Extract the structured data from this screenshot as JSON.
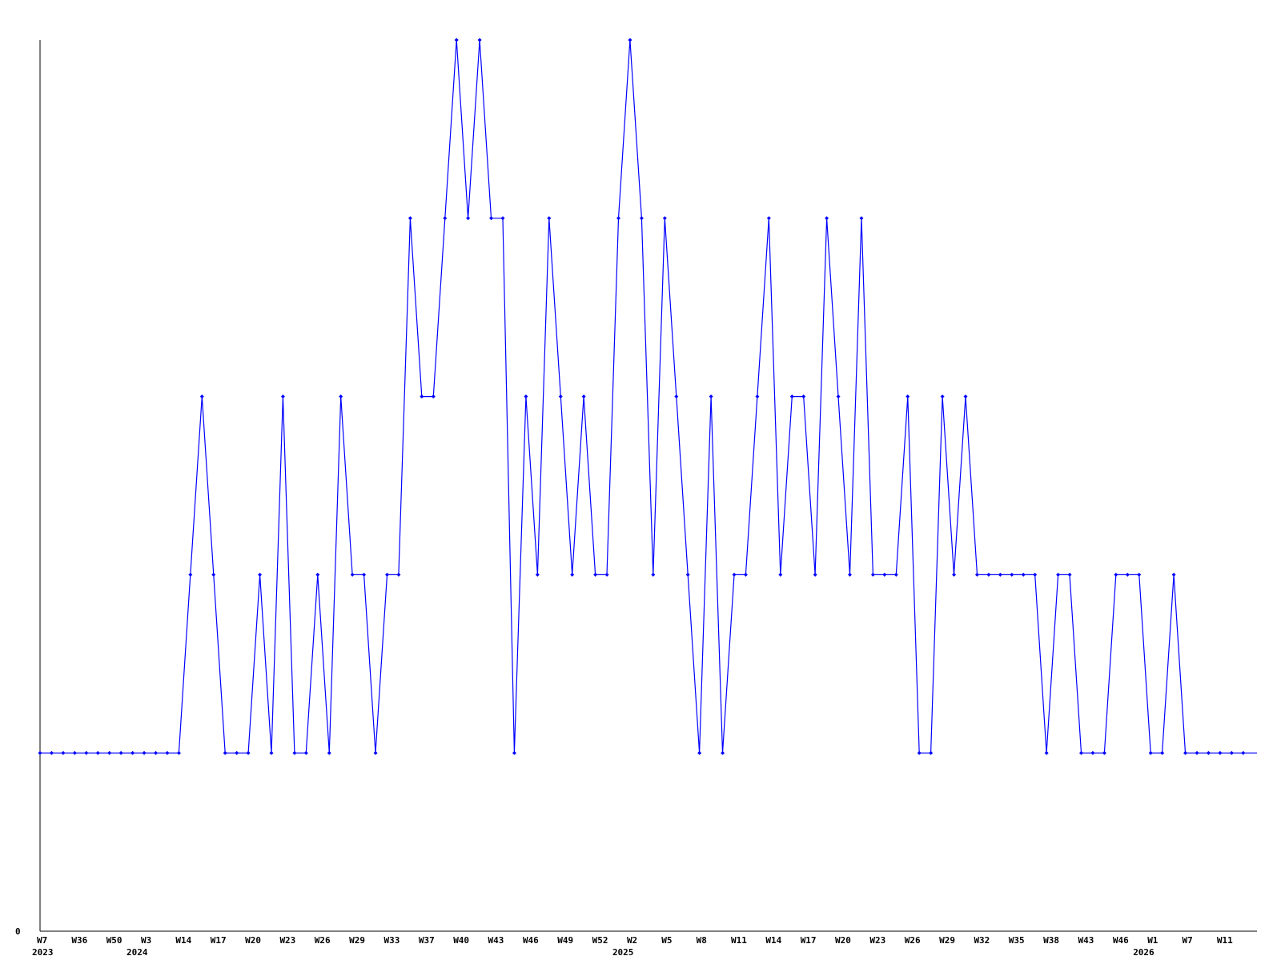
{
  "chart_data": {
    "type": "line",
    "title": "",
    "xlabel": "",
    "ylabel": "",
    "ylim": [
      0,
      5
    ],
    "grid": false,
    "legend": "none",
    "line_color": "#0000ff",
    "y_tick_labels": [
      "0"
    ],
    "x_tick_labels": [
      {
        "index": 0,
        "label": "W7",
        "year": "2023"
      },
      {
        "index": 3,
        "label": "W36"
      },
      {
        "index": 6,
        "label": "W50"
      },
      {
        "index": 9,
        "label": "W3",
        "year": "2024"
      },
      {
        "index": 12,
        "label": "W14"
      },
      {
        "index": 15,
        "label": "W17"
      },
      {
        "index": 18,
        "label": "W20"
      },
      {
        "index": 21,
        "label": "W23"
      },
      {
        "index": 24,
        "label": "W26"
      },
      {
        "index": 27,
        "label": "W29"
      },
      {
        "index": 30,
        "label": "W33"
      },
      {
        "index": 33,
        "label": "W37"
      },
      {
        "index": 36,
        "label": "W40"
      },
      {
        "index": 39,
        "label": "W43"
      },
      {
        "index": 42,
        "label": "W46"
      },
      {
        "index": 45,
        "label": "W49"
      },
      {
        "index": 48,
        "label": "W52"
      },
      {
        "index": 51,
        "label": "W2",
        "year": "2025"
      },
      {
        "index": 54,
        "label": "W5"
      },
      {
        "index": 57,
        "label": "W8"
      },
      {
        "index": 60,
        "label": "W11"
      },
      {
        "index": 63,
        "label": "W14"
      },
      {
        "index": 66,
        "label": "W17"
      },
      {
        "index": 69,
        "label": "W20"
      },
      {
        "index": 72,
        "label": "W23"
      },
      {
        "index": 75,
        "label": "W26"
      },
      {
        "index": 78,
        "label": "W29"
      },
      {
        "index": 81,
        "label": "W32"
      },
      {
        "index": 84,
        "label": "W35"
      },
      {
        "index": 87,
        "label": "W38"
      },
      {
        "index": 90,
        "label": "W43"
      },
      {
        "index": 93,
        "label": "W46"
      },
      {
        "index": 96,
        "label": "W1",
        "year": "2026"
      },
      {
        "index": 99,
        "label": "W7"
      },
      {
        "index": 102,
        "label": "W11"
      }
    ],
    "values": [
      1,
      1,
      1,
      1,
      1,
      1,
      1,
      1,
      1,
      1,
      1,
      1,
      1,
      2,
      3,
      2,
      1,
      1,
      1,
      2,
      1,
      3,
      1,
      1,
      2,
      1,
      3,
      2,
      2,
      1,
      2,
      2,
      4,
      3,
      3,
      4,
      5,
      4,
      5,
      4,
      4,
      1,
      3,
      2,
      4,
      3,
      2,
      3,
      2,
      2,
      4,
      5,
      4,
      2,
      4,
      3,
      2,
      1,
      3,
      1,
      2,
      2,
      3,
      4,
      2,
      3,
      3,
      2,
      4,
      3,
      2,
      4,
      2,
      2,
      2,
      3,
      1,
      1,
      3,
      2,
      3,
      2,
      2,
      2,
      2,
      2,
      2,
      1,
      2,
      2,
      1,
      1,
      1,
      2,
      2,
      2,
      1,
      1,
      2,
      1,
      1,
      1,
      1,
      1,
      1
    ]
  }
}
